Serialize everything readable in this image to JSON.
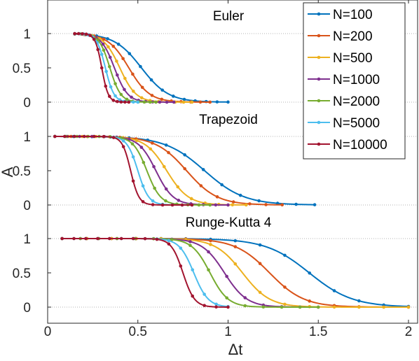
{
  "chart_data": {
    "type": "line",
    "xlabel": "Δt",
    "ylabel": "A",
    "xlim": [
      0,
      2
    ],
    "xticks": [
      0,
      0.5,
      1,
      1.5,
      2
    ],
    "xtick_labels": [
      "0",
      "0.5",
      "1",
      "1.5",
      "2"
    ],
    "ytick_labels": [
      "0",
      "0.5",
      "1"
    ],
    "grid": "dotted reference lines at A = 0 and A = 1 in each panel",
    "legend": {
      "position": "top-right",
      "entries": [
        {
          "label": "N=100",
          "color": "#0072BD"
        },
        {
          "label": "N=200",
          "color": "#D95319"
        },
        {
          "label": "N=500",
          "color": "#EDB120"
        },
        {
          "label": "N=1000",
          "color": "#7E2F8E"
        },
        {
          "label": "N=2000",
          "color": "#77AC30"
        },
        {
          "label": "N=5000",
          "color": "#4DBEEE"
        },
        {
          "label": "N=10000",
          "color": "#A2142F"
        }
      ]
    },
    "panels": [
      {
        "title": "Euler",
        "ylim": [
          0,
          1
        ],
        "series": [
          {
            "name": "N=100",
            "x_start": 0.15,
            "x_end": 1.0,
            "mid": 0.52,
            "width": 0.075
          },
          {
            "name": "N=200",
            "x_start": 0.15,
            "x_end": 0.9,
            "mid": 0.45,
            "width": 0.058
          },
          {
            "name": "N=500",
            "x_start": 0.15,
            "x_end": 0.8,
            "mid": 0.4,
            "width": 0.045
          },
          {
            "name": "N=1000",
            "x_start": 0.15,
            "x_end": 0.7,
            "mid": 0.37,
            "width": 0.037
          },
          {
            "name": "N=2000",
            "x_start": 0.15,
            "x_end": 0.6,
            "mid": 0.345,
            "width": 0.03
          },
          {
            "name": "N=5000",
            "x_start": 0.15,
            "x_end": 0.5,
            "mid": 0.32,
            "width": 0.024
          },
          {
            "name": "N=10000",
            "x_start": 0.15,
            "x_end": 0.45,
            "mid": 0.3,
            "width": 0.018
          }
        ]
      },
      {
        "title": "Trapezoid",
        "ylim": [
          0,
          1
        ],
        "series": [
          {
            "name": "N=100",
            "x_start": 0.04,
            "x_end": 1.48,
            "mid": 0.87,
            "width": 0.11
          },
          {
            "name": "N=200",
            "x_start": 0.04,
            "x_end": 1.3,
            "mid": 0.77,
            "width": 0.085
          },
          {
            "name": "N=500",
            "x_start": 0.04,
            "x_end": 1.1,
            "mid": 0.66,
            "width": 0.06
          },
          {
            "name": "N=1000",
            "x_start": 0.04,
            "x_end": 1.0,
            "mid": 0.6,
            "width": 0.048
          },
          {
            "name": "N=2000",
            "x_start": 0.04,
            "x_end": 0.9,
            "mid": 0.55,
            "width": 0.038
          },
          {
            "name": "N=5000",
            "x_start": 0.04,
            "x_end": 0.8,
            "mid": 0.5,
            "width": 0.03
          },
          {
            "name": "N=10000",
            "x_start": 0.04,
            "x_end": 0.8,
            "mid": 0.46,
            "width": 0.023
          }
        ]
      },
      {
        "title": "Runge-Kutta 4",
        "ylim": [
          0,
          1
        ],
        "series": [
          {
            "name": "N=100",
            "x_start": 0.08,
            "x_end": 2.0,
            "mid": 1.45,
            "width": 0.12
          },
          {
            "name": "N=200",
            "x_start": 0.08,
            "x_end": 2.0,
            "mid": 1.23,
            "width": 0.095
          },
          {
            "name": "N=500",
            "x_start": 0.08,
            "x_end": 2.0,
            "mid": 1.08,
            "width": 0.075
          },
          {
            "name": "N=1000",
            "x_start": 0.08,
            "x_end": 1.5,
            "mid": 0.98,
            "width": 0.062
          },
          {
            "name": "N=2000",
            "x_start": 0.08,
            "x_end": 1.5,
            "mid": 0.9,
            "width": 0.05
          },
          {
            "name": "N=5000",
            "x_start": 0.08,
            "x_end": 1.0,
            "mid": 0.81,
            "width": 0.04
          },
          {
            "name": "N=10000",
            "x_start": 0.08,
            "x_end": 1.0,
            "mid": 0.75,
            "width": 0.032
          }
        ]
      }
    ]
  }
}
